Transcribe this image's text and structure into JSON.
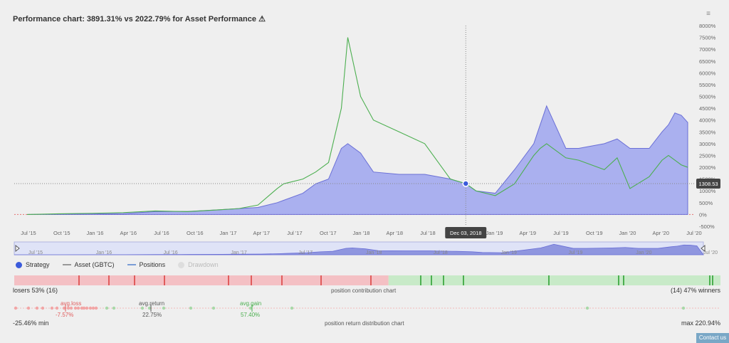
{
  "header": {
    "title": "Performance chart: 3891.31% vs 2022.79% for Asset Performance",
    "warn_icon": "⚠",
    "menu_icon": "≡"
  },
  "chart_data": {
    "type": "line",
    "ylim": [
      -500,
      8000
    ],
    "y_ticks": [
      "8000%",
      "7500%",
      "7000%",
      "6500%",
      "6000%",
      "5500%",
      "5000%",
      "4500%",
      "4000%",
      "3500%",
      "3000%",
      "2500%",
      "2000%",
      "1500%",
      "1000%",
      "500%",
      "0%",
      "-500%"
    ],
    "x_ticks": [
      "Jul '15",
      "Oct '15",
      "Jan '16",
      "Apr '16",
      "Jul '16",
      "Oct '16",
      "Jan '17",
      "Apr '17",
      "Jul '17",
      "Oct '17",
      "Jan '18",
      "Apr '18",
      "Jul '18",
      "Oct '18",
      "Jan '19",
      "Apr '19",
      "Jul '19",
      "Oct '19",
      "Jan '20",
      "Apr '20",
      "Jul '20"
    ],
    "navigator_ticks": [
      "Jul '15",
      "Jan '16",
      "Jul '16",
      "Jan '17",
      "Jul '17",
      "Jan '18",
      "Jul '18",
      "Jan '19",
      "Jul '19",
      "Jan '20",
      "Jul '20"
    ],
    "series": [
      {
        "name": "Strategy",
        "color": "#7b7fe0",
        "x": [
          2015.5,
          2015.75,
          2016.0,
          2016.25,
          2016.5,
          2016.75,
          2017.0,
          2017.15,
          2017.3,
          2017.45,
          2017.5,
          2017.65,
          2017.75,
          2017.85,
          2017.95,
          2018.0,
          2018.1,
          2018.2,
          2018.4,
          2018.6,
          2018.8,
          2018.92,
          2019.0,
          2019.15,
          2019.3,
          2019.45,
          2019.5,
          2019.55,
          2019.6,
          2019.7,
          2019.8,
          2020.0,
          2020.1,
          2020.2,
          2020.35,
          2020.45,
          2020.5,
          2020.55,
          2020.6,
          2020.65
        ],
        "y": [
          0,
          10,
          20,
          40,
          120,
          130,
          200,
          250,
          300,
          500,
          600,
          900,
          1300,
          1500,
          2800,
          3000,
          2600,
          1800,
          1700,
          1700,
          1500,
          1308.53,
          1000,
          900,
          1900,
          3000,
          3800,
          4600,
          4000,
          2800,
          2800,
          3000,
          3200,
          2800,
          2800,
          3500,
          3800,
          4300,
          4200,
          3900
        ]
      },
      {
        "name": "Asset (GBTC)",
        "color": "#999999",
        "x": [
          2015.5,
          2015.75,
          2016.0,
          2016.25,
          2016.5,
          2016.75,
          2017.0,
          2017.15,
          2017.3,
          2017.45,
          2017.5,
          2017.65,
          2017.75,
          2017.85,
          2017.95,
          2018.0,
          2018.1,
          2018.2,
          2018.4,
          2018.6,
          2018.8,
          2018.92,
          2019.0,
          2019.15,
          2019.3,
          2019.45,
          2019.5,
          2019.55,
          2019.6,
          2019.7,
          2019.8,
          2020.0,
          2020.1,
          2020.2,
          2020.35,
          2020.45,
          2020.5,
          2020.55,
          2020.6,
          2020.65
        ],
        "y": [
          0,
          30,
          50,
          80,
          150,
          120,
          200,
          250,
          400,
          1100,
          1300,
          1500,
          1800,
          2200,
          4500,
          7500,
          5000,
          4000,
          3500,
          3000,
          1500,
          1308.53,
          1000,
          800,
          1300,
          2500,
          2800,
          3000,
          2800,
          2400,
          2300,
          1900,
          2400,
          1100,
          1600,
          2300,
          2500,
          2300,
          2100,
          2000
        ]
      }
    ],
    "crosshair": {
      "label": "Dec 03, 2018",
      "value": "1308.53"
    }
  },
  "legend": {
    "items": [
      {
        "label": "Strategy",
        "color": "#3b5bdb",
        "kind": "dot"
      },
      {
        "label": "Asset (GBTC)",
        "color": "#999999",
        "kind": "line"
      },
      {
        "label": "Positions",
        "color": "#7a9cd6",
        "kind": "line"
      },
      {
        "label": "Drawdown",
        "color": "#cccccc",
        "kind": "dot"
      }
    ]
  },
  "contribution": {
    "losers_text": "losers 53% (16)",
    "center_text": "position contribution chart",
    "winners_text": "(14) 47% winners",
    "loser_fraction": 0.53,
    "loser_color": "#f4c0c4",
    "winner_color": "#c8eac8"
  },
  "distribution": {
    "avg_loss_label": "avg.loss",
    "avg_loss_value": "-7.57%",
    "avg_return_label": "avg.return",
    "avg_return_value": "22.75%",
    "avg_gain_label": "avg.gain",
    "avg_gain_value": "57.40%",
    "min_text": "-25.46% min",
    "center_text": "position return distribution chart",
    "max_text": "max 220.94%"
  },
  "footer": {
    "contact": "Contact us"
  }
}
